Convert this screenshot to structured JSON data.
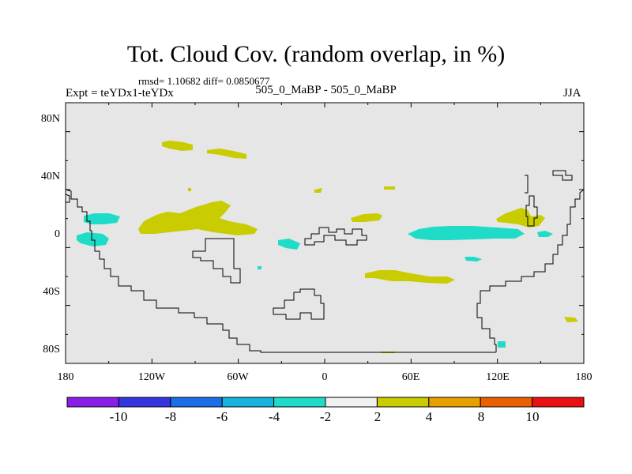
{
  "header": {
    "title": "Tot. Cloud Cov. (random overlap, in %)",
    "stats": "rmsd= 1.10682  diff= 0.0850677",
    "experiment": "Expt = teYDx1-teYDx",
    "case": "505_0_MaBP - 505_0_MaBP",
    "season": "JJA"
  },
  "map": {
    "x_ticks": [
      "180",
      "120W",
      "60W",
      "0",
      "60E",
      "120E",
      "180"
    ],
    "y_ticks": [
      "80N",
      "40N",
      "0",
      "40S",
      "80S"
    ],
    "background_color": "#e6e6e6",
    "coast_color": "#000000"
  },
  "colorbar": {
    "labels": [
      "-10",
      "-8",
      "-6",
      "-4",
      "-2",
      "2",
      "4",
      "8",
      "10"
    ],
    "colors": [
      "#8a1ee8",
      "#3636e0",
      "#1a6ee6",
      "#16b2e0",
      "#1fdcc8",
      "#f0f0f0",
      "#c8cc00",
      "#e8a000",
      "#e86000",
      "#e81010"
    ]
  },
  "chart_data": {
    "type": "map",
    "title": "Tot. Cloud Cov. (random overlap, in %)",
    "projection": "cylindrical-equidistant",
    "lon_range": [
      -180,
      180
    ],
    "lat_range": [
      -90,
      90
    ],
    "levels": [
      -10,
      -8,
      -6,
      -4,
      -2,
      2,
      4,
      8,
      10
    ],
    "anomaly_regions": [
      {
        "name": "north-pacific-positive",
        "category": "2 to 4",
        "lon": -100,
        "lat": 8
      },
      {
        "name": "north-atlantic-positive",
        "category": "2 to 4",
        "lon": -87,
        "lat": 61
      },
      {
        "name": "west-pacific-positive",
        "category": "2 to 4",
        "lon": 140,
        "lat": 14
      },
      {
        "name": "indian-ocean-equatorial-negative",
        "category": "-4 to -2",
        "lon": 100,
        "lat": 0
      },
      {
        "name": "south-indian-positive",
        "category": "2 to 4",
        "lon": 50,
        "lat": -29
      },
      {
        "name": "east-pacific-negative",
        "category": "-4 to -2",
        "lon": -162,
        "lat": 2
      }
    ]
  }
}
